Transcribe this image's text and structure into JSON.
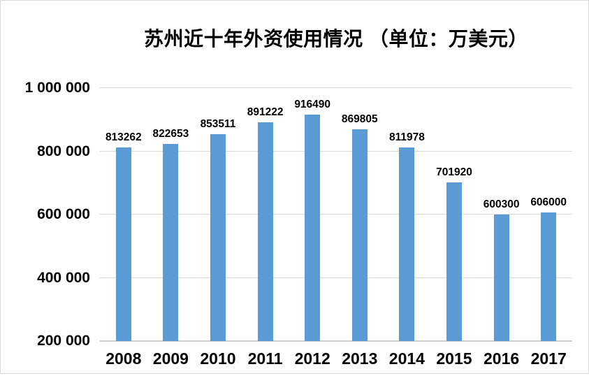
{
  "chart_data": {
    "type": "bar",
    "title": "苏州近十年外资使用情况 （单位：万美元）",
    "categories": [
      "2008",
      "2009",
      "2010",
      "2011",
      "2012",
      "2013",
      "2014",
      "2015",
      "2016",
      "2017"
    ],
    "values": [
      813262,
      822653,
      853511,
      891222,
      916490,
      869805,
      811978,
      701920,
      600300,
      606000
    ],
    "bar_labels": [
      "813262",
      "822653",
      "853511",
      "891222",
      "916490",
      "869805",
      "811978",
      "701920",
      "600300",
      "606000"
    ],
    "xlabel": "",
    "ylabel": "",
    "ylim": [
      200000,
      1000000
    ],
    "yticks": [
      {
        "value": 200000,
        "label": "200 000"
      },
      {
        "value": 400000,
        "label": "400 000"
      },
      {
        "value": 600000,
        "label": "600 000"
      },
      {
        "value": 800000,
        "label": "800 000"
      },
      {
        "value": 1000000,
        "label": "1 000 000"
      }
    ],
    "grid": true,
    "legend": "none",
    "colors": {
      "bar": "#5B9BD5",
      "text": "#000000",
      "gridline": "#D9D9D9",
      "axisline": "#CFCFCF",
      "frame_border": "#D9D9D9",
      "background": "#FFFFFF"
    }
  }
}
